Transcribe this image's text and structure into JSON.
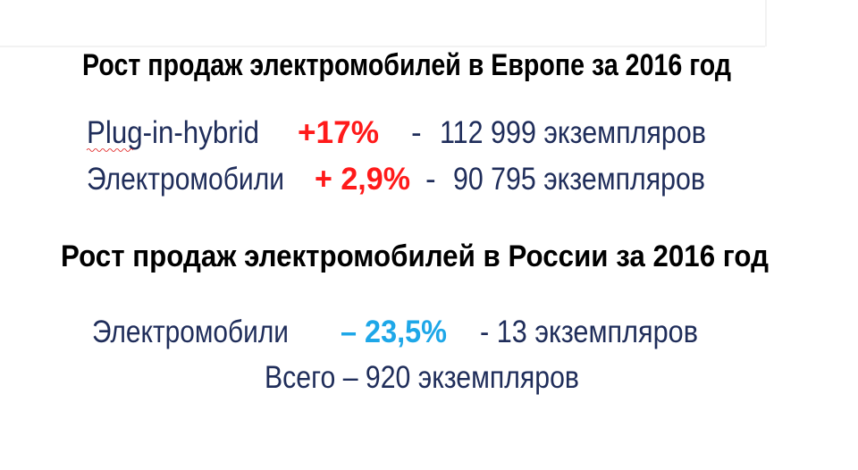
{
  "slide": {
    "sections": [
      {
        "title": "Рост продаж электромобилей в Европе за 2016 год",
        "rows": [
          {
            "label": "Plug-in-hybrid",
            "change": "+17%",
            "separator": "-",
            "count": "112 999 экземпляров"
          },
          {
            "label": "Электромобили",
            "change": "+ 2,9%",
            "separator": "-",
            "count": "90 795 экземпляров"
          }
        ]
      },
      {
        "title": "Рост продаж электромобилей в России за 2016 год",
        "rows": [
          {
            "label": "Электромобили",
            "change": "– 23,5%",
            "count": "- 13 экземпляров"
          }
        ],
        "total": "Всего – 920 экземпляров"
      }
    ]
  }
}
